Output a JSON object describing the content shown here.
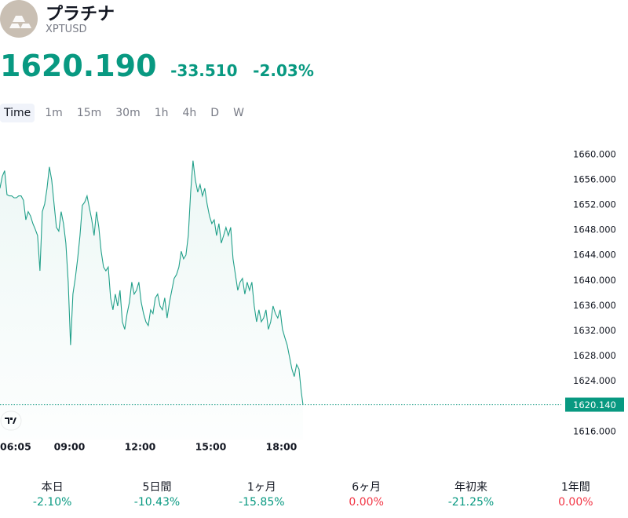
{
  "header": {
    "title": "プラチナ",
    "symbol": "XPTUSD",
    "price": "1620.190",
    "change": "-33.510",
    "change_percent": "-2.03%"
  },
  "intervals": [
    "Time",
    "1m",
    "15m",
    "30m",
    "1h",
    "4h",
    "D",
    "W"
  ],
  "chart_data": {
    "type": "area",
    "color": "#22a08a",
    "x": [
      6.08,
      6.18,
      6.28,
      6.38,
      6.48,
      6.58,
      6.68,
      6.78,
      6.88,
      6.98,
      7.08,
      7.18,
      7.28,
      7.38,
      7.48,
      7.58,
      7.68,
      7.78,
      7.88,
      7.98,
      8.08,
      8.18,
      8.28,
      8.38,
      8.48,
      8.58,
      8.68,
      8.78,
      8.88,
      8.98,
      9.08,
      9.18,
      9.28,
      9.38,
      9.48,
      9.58,
      9.68,
      9.78,
      9.88,
      9.98,
      10.08,
      10.18,
      10.28,
      10.38,
      10.48,
      10.58,
      10.68,
      10.78,
      10.88,
      10.98,
      11.08,
      11.18,
      11.28,
      11.38,
      11.48,
      11.58,
      11.68,
      11.78,
      11.88,
      11.98,
      12.08,
      12.18,
      12.28,
      12.38,
      12.48,
      12.58,
      12.68,
      12.78,
      12.88,
      12.98,
      13.08,
      13.18,
      13.28,
      13.38,
      13.48,
      13.58,
      13.68,
      13.78,
      13.88,
      13.98,
      14.08,
      14.18,
      14.28,
      14.38,
      14.48,
      14.58,
      14.68,
      14.78,
      14.88,
      14.98,
      15.08,
      15.18,
      15.28,
      15.38,
      15.48,
      15.58,
      15.68,
      15.78,
      15.88,
      15.98,
      16.08,
      16.18,
      16.28,
      16.38,
      16.48,
      16.58,
      16.68,
      16.78,
      16.88,
      16.98,
      17.08,
      17.18,
      17.28,
      17.38,
      17.48,
      17.58,
      17.68,
      17.78,
      17.88,
      17.98,
      18.08,
      18.18,
      18.28,
      18.38,
      18.48,
      18.58,
      18.68,
      18.78,
      18.88,
      18.95
    ],
    "values": [
      1654.5,
      1656.4,
      1657.3,
      1653.5,
      1653.3,
      1653.3,
      1653.0,
      1653.0,
      1653.3,
      1653.3,
      1652.6,
      1649.5,
      1650.8,
      1650.1,
      1648.9,
      1648.0,
      1647.0,
      1641.4,
      1650.8,
      1652.0,
      1654.5,
      1657.9,
      1655.8,
      1652.0,
      1648.3,
      1647.7,
      1650.8,
      1648.9,
      1645.8,
      1639.6,
      1629.6,
      1637.7,
      1640.2,
      1643.3,
      1647.0,
      1651.8,
      1652.3,
      1653.3,
      1651.4,
      1649.5,
      1647.0,
      1650.8,
      1648.3,
      1644.5,
      1642.0,
      1641.4,
      1642.0,
      1637.1,
      1635.2,
      1637.7,
      1635.8,
      1638.3,
      1633.3,
      1632.1,
      1634.6,
      1636.4,
      1639.6,
      1637.7,
      1638.3,
      1639.6,
      1636.4,
      1634.6,
      1633.3,
      1632.7,
      1635.2,
      1634.6,
      1637.1,
      1637.7,
      1635.8,
      1635.2,
      1637.1,
      1633.9,
      1636.4,
      1638.3,
      1640.2,
      1640.8,
      1642.0,
      1644.5,
      1643.3,
      1643.9,
      1647.0,
      1653.9,
      1658.9,
      1655.8,
      1653.9,
      1655.1,
      1653.3,
      1654.5,
      1652.0,
      1650.1,
      1648.9,
      1649.5,
      1647.0,
      1648.9,
      1645.8,
      1647.0,
      1648.3,
      1647.0,
      1648.3,
      1643.3,
      1640.8,
      1638.3,
      1639.6,
      1640.2,
      1637.7,
      1639.6,
      1638.3,
      1639.6,
      1635.8,
      1633.3,
      1635.2,
      1633.3,
      1633.9,
      1635.2,
      1632.1,
      1633.3,
      1635.8,
      1634.6,
      1633.9,
      1635.2,
      1632.1,
      1630.8,
      1629.6,
      1627.7,
      1625.8,
      1624.6,
      1626.5,
      1625.8,
      1622.1,
      1620.14
    ],
    "last_value_label": "1620.140",
    "xlim": [
      6.0833,
      29.92
    ],
    "xticks": [
      {
        "value": 6.0833,
        "label": "06:05"
      },
      {
        "value": 9,
        "label": "09:00"
      },
      {
        "value": 12,
        "label": "12:00"
      },
      {
        "value": 15,
        "label": "15:00"
      },
      {
        "value": 18,
        "label": "18:00"
      }
    ],
    "ylim": [
      1614.6,
      1662.6
    ],
    "yticks": [
      {
        "value": 1660,
        "label": "1660.000"
      },
      {
        "value": 1656,
        "label": "1656.000"
      },
      {
        "value": 1652,
        "label": "1652.000"
      },
      {
        "value": 1648,
        "label": "1648.000"
      },
      {
        "value": 1644,
        "label": "1644.000"
      },
      {
        "value": 1640,
        "label": "1640.000"
      },
      {
        "value": 1636,
        "label": "1636.000"
      },
      {
        "value": 1632,
        "label": "1632.000"
      },
      {
        "value": 1628,
        "label": "1628.000"
      },
      {
        "value": 1624,
        "label": "1624.000"
      },
      {
        "value": 1616,
        "label": "1616.000"
      }
    ]
  },
  "performance": [
    {
      "label": "本日",
      "value": "-2.10%",
      "color": "#089981"
    },
    {
      "label": "5日間",
      "value": "-10.43%",
      "color": "#089981"
    },
    {
      "label": "1ヶ月",
      "value": "-15.85%",
      "color": "#089981"
    },
    {
      "label": "6ヶ月",
      "value": "0.00%",
      "color": "#f23645"
    },
    {
      "label": "年初来",
      "value": "-21.25%",
      "color": "#089981"
    },
    {
      "label": "1年間",
      "value": "0.00%",
      "color": "#f23645"
    }
  ]
}
